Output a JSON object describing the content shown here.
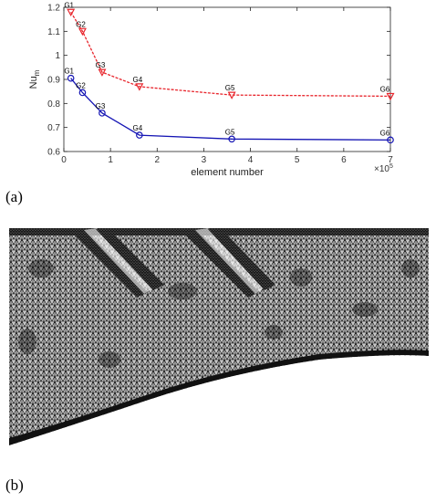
{
  "panels": {
    "a_label": "(a)",
    "b_label": "(b)"
  },
  "chart_data": {
    "type": "line",
    "title": "",
    "xlabel": "element number",
    "ylabel": "Nu",
    "ylabel_subscript": "m",
    "x_multiplier": "×10",
    "x_multiplier_exp": "5",
    "xlim": [
      0,
      7
    ],
    "ylim": [
      0.6,
      1.2
    ],
    "xticks": [
      "0",
      "1",
      "2",
      "3",
      "4",
      "5",
      "6",
      "7"
    ],
    "yticks": [
      "0.6",
      "0.7",
      "0.8",
      "0.9",
      "1",
      "1.1",
      "1.2"
    ],
    "grid": false,
    "series": [
      {
        "color": "#e8262d",
        "marker": "triangle-down",
        "x": [
          0.15,
          0.4,
          0.82,
          1.62,
          3.6,
          7.0
        ],
        "y": [
          1.18,
          1.1,
          0.93,
          0.87,
          0.835,
          0.83
        ],
        "labels": [
          "G1",
          "G2",
          "G3",
          "G4",
          "G5",
          "G6"
        ]
      },
      {
        "color": "#1414b4",
        "marker": "circle",
        "x": [
          0.15,
          0.4,
          0.82,
          1.62,
          3.6,
          7.0
        ],
        "y": [
          0.905,
          0.845,
          0.76,
          0.668,
          0.652,
          0.648
        ],
        "labels": [
          "G1",
          "G2",
          "G3",
          "G4",
          "G5",
          "G6"
        ]
      }
    ]
  },
  "mesh_image": {
    "description_icon": "triangular-mesh-icon",
    "color": "#000000"
  }
}
